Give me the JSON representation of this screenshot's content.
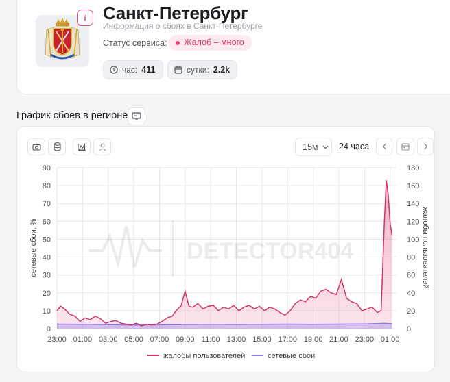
{
  "header": {
    "title": "Санкт-Петербург",
    "subtitle": "Информация о сбоях в Санкт-Петербурге",
    "status_label": "Статус сервиса:",
    "status_value": "Жалоб – много",
    "info_badge": "i",
    "stats": [
      {
        "label": "час:",
        "value": "411",
        "icon": "clock-icon"
      },
      {
        "label": "сутки:",
        "value": "2.2k",
        "icon": "calendar-icon"
      }
    ]
  },
  "section": {
    "title": "График сбоев в регионе"
  },
  "toolbar": {
    "interval": "15м",
    "range": "24 часа"
  },
  "colors": {
    "complaints": "#d0356a",
    "outages": "#8f7be8",
    "accent": "#e9446f"
  },
  "chart_data": {
    "type": "line",
    "watermark": "DETECTOR404",
    "x_ticks": [
      "23:00",
      "01:00",
      "03:00",
      "05:00",
      "07:00",
      "09:00",
      "11:00",
      "13:00",
      "15:00",
      "17:00",
      "19:00",
      "21:00",
      "23:00",
      "01:00"
    ],
    "y_left": {
      "label": "сетевые сбои, %",
      "ticks": [
        0,
        10,
        20,
        30,
        40,
        50,
        60,
        70,
        80,
        90
      ],
      "range": [
        0,
        90
      ]
    },
    "y_right": {
      "label": "жалобы пользователей",
      "ticks": [
        0,
        20,
        40,
        60,
        80,
        100,
        120,
        140,
        160,
        180
      ],
      "range": [
        0,
        180
      ]
    },
    "x_range_hours": [
      0,
      26.5
    ],
    "series": [
      {
        "name": "жалобы пользователей",
        "axis": "right",
        "points": [
          [
            0,
            20
          ],
          [
            0.3,
            25
          ],
          [
            0.6,
            22
          ],
          [
            1,
            16
          ],
          [
            1.4,
            14
          ],
          [
            1.8,
            8
          ],
          [
            2.2,
            12
          ],
          [
            2.6,
            10
          ],
          [
            3,
            14
          ],
          [
            3.4,
            11
          ],
          [
            3.8,
            6
          ],
          [
            4.2,
            8
          ],
          [
            4.6,
            9
          ],
          [
            5,
            6
          ],
          [
            5.4,
            5
          ],
          [
            5.8,
            4
          ],
          [
            6.2,
            6
          ],
          [
            6.6,
            3
          ],
          [
            7,
            5
          ],
          [
            7.4,
            4
          ],
          [
            7.8,
            5
          ],
          [
            8.2,
            8
          ],
          [
            8.6,
            12
          ],
          [
            9,
            14
          ],
          [
            9.3,
            20
          ],
          [
            9.7,
            26
          ],
          [
            10.0,
            42
          ],
          [
            10.3,
            25
          ],
          [
            10.6,
            24
          ],
          [
            11,
            28
          ],
          [
            11.4,
            22
          ],
          [
            11.8,
            25
          ],
          [
            12.2,
            26
          ],
          [
            12.6,
            20
          ],
          [
            13,
            24
          ],
          [
            13.4,
            22
          ],
          [
            13.8,
            26
          ],
          [
            14.2,
            20
          ],
          [
            14.6,
            24
          ],
          [
            15,
            26
          ],
          [
            15.4,
            22
          ],
          [
            15.8,
            25
          ],
          [
            16.2,
            20
          ],
          [
            16.6,
            24
          ],
          [
            17,
            22
          ],
          [
            17.4,
            18
          ],
          [
            17.8,
            15
          ],
          [
            18.2,
            20
          ],
          [
            18.6,
            28
          ],
          [
            19,
            32
          ],
          [
            19.4,
            30
          ],
          [
            19.8,
            36
          ],
          [
            20.2,
            34
          ],
          [
            20.6,
            42
          ],
          [
            21,
            44
          ],
          [
            21.4,
            40
          ],
          [
            21.8,
            38
          ],
          [
            22.2,
            55
          ],
          [
            22.6,
            34
          ],
          [
            23,
            30
          ],
          [
            23.4,
            28
          ],
          [
            23.8,
            20
          ],
          [
            24.2,
            22
          ],
          [
            24.6,
            24
          ],
          [
            25,
            18
          ],
          [
            25.3,
            20
          ],
          [
            25.55,
            120
          ],
          [
            25.7,
            166
          ],
          [
            25.85,
            150
          ],
          [
            26.0,
            118
          ],
          [
            26.15,
            104
          ]
        ]
      },
      {
        "name": "сетевые сбои",
        "axis": "left",
        "points": [
          [
            0,
            2.5
          ],
          [
            2,
            2.4
          ],
          [
            4,
            2.2
          ],
          [
            6,
            2
          ],
          [
            8,
            2.1
          ],
          [
            10,
            2.3
          ],
          [
            12,
            2.4
          ],
          [
            14,
            2.3
          ],
          [
            16,
            2.4
          ],
          [
            18,
            2.5
          ],
          [
            20,
            2.4
          ],
          [
            22,
            2.5
          ],
          [
            24,
            2.6
          ],
          [
            25.5,
            2.9
          ],
          [
            26.15,
            2.7
          ]
        ]
      }
    ]
  }
}
